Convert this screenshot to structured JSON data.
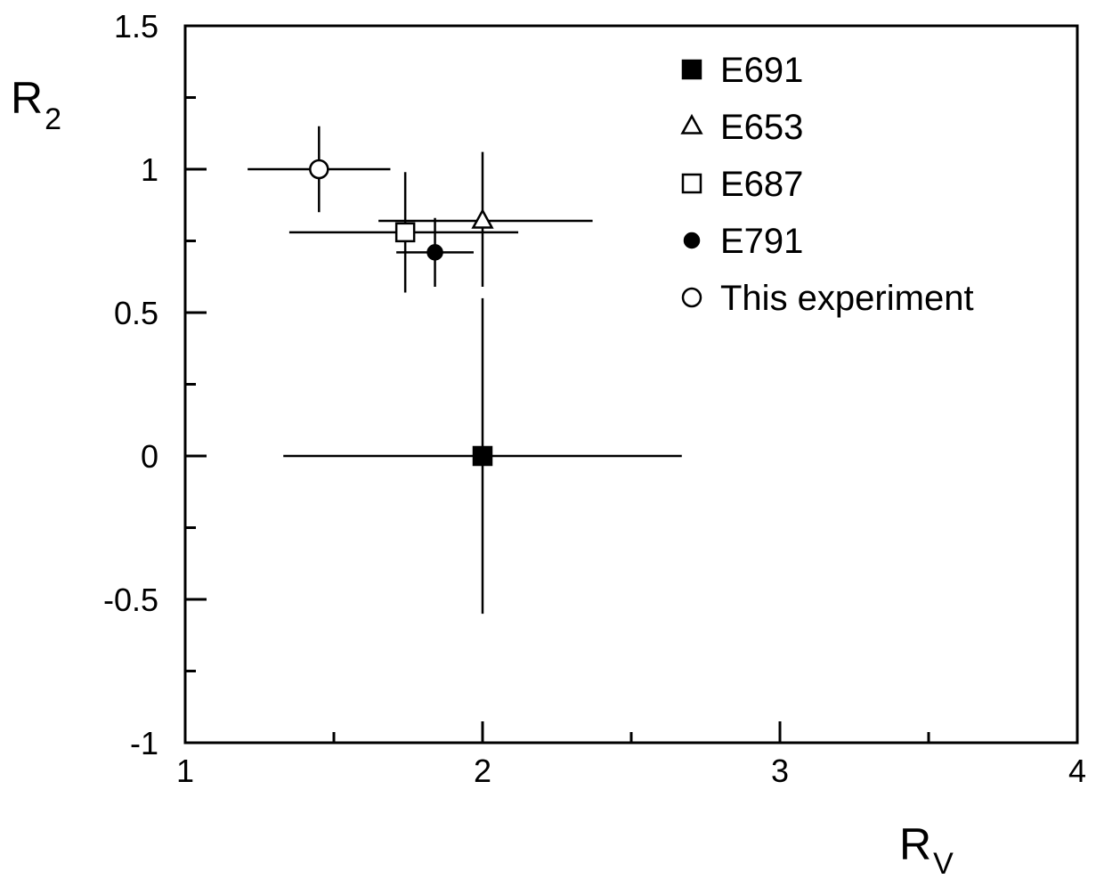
{
  "chart_data": {
    "type": "scatter",
    "title": "",
    "xlabel": {
      "main": "R",
      "sub": "V"
    },
    "ylabel": {
      "main": "R",
      "sub": "2"
    },
    "xlim": [
      1,
      4
    ],
    "ylim": [
      -1,
      1.5
    ],
    "x_ticks": [
      1,
      2,
      3,
      4
    ],
    "x_tick_labels": [
      "1",
      "2",
      "3",
      "4"
    ],
    "y_ticks": [
      -1,
      -0.5,
      0,
      0.5,
      1,
      1.5
    ],
    "y_tick_labels": [
      "-1",
      "-0.5",
      "0",
      "0.5",
      "1",
      "1.5"
    ],
    "grid": false,
    "legend_position": "top-right",
    "series": [
      {
        "name": "E691",
        "marker": "filled-square",
        "x": 2.0,
        "y": 0.0,
        "x_err": [
          0.67,
          0.67
        ],
        "y_err": [
          0.55,
          0.55
        ]
      },
      {
        "name": "E653",
        "marker": "open-triangle",
        "x": 2.0,
        "y": 0.82,
        "x_err": [
          0.35,
          0.37
        ],
        "y_err": [
          0.23,
          0.24
        ]
      },
      {
        "name": "E687",
        "marker": "open-square",
        "x": 1.74,
        "y": 0.78,
        "x_err": [
          0.39,
          0.38
        ],
        "y_err": [
          0.21,
          0.21
        ]
      },
      {
        "name": "E791",
        "marker": "filled-circle",
        "x": 1.84,
        "y": 0.71,
        "x_err": [
          0.13,
          0.13
        ],
        "y_err": [
          0.12,
          0.12
        ]
      },
      {
        "name": "This experiment",
        "marker": "open-circle",
        "x": 1.45,
        "y": 1.0,
        "x_err": [
          0.24,
          0.24
        ],
        "y_err": [
          0.15,
          0.15
        ]
      }
    ]
  }
}
